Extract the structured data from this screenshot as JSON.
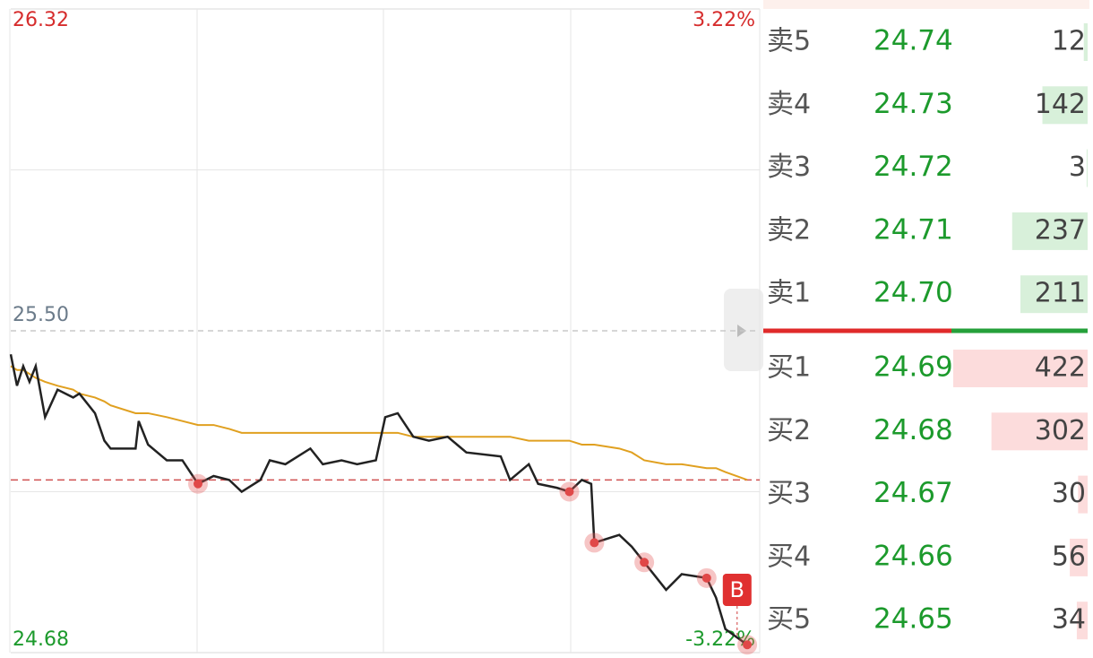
{
  "chart_data": {
    "type": "line",
    "x": [
      0,
      2,
      4,
      6,
      8,
      11,
      15,
      20,
      22,
      27,
      30,
      32,
      40,
      41,
      44,
      50,
      55,
      60,
      65,
      70,
      74,
      80,
      83,
      88,
      96,
      100,
      106,
      111,
      117,
      120,
      124,
      129,
      134,
      140,
      146,
      157,
      160,
      166,
      169,
      175,
      179,
      183,
      186,
      187,
      195,
      199,
      203,
      210,
      215,
      223,
      226,
      229,
      236
    ],
    "series": [
      {
        "name": "price",
        "color": "#222222",
        "values": [
          25.44,
          25.36,
          25.41,
          25.37,
          25.41,
          25.28,
          25.35,
          25.33,
          25.34,
          25.29,
          25.22,
          25.2,
          25.2,
          25.27,
          25.21,
          25.17,
          25.17,
          25.11,
          25.13,
          25.12,
          25.09,
          25.12,
          25.17,
          25.16,
          25.2,
          25.16,
          25.17,
          25.16,
          25.17,
          25.28,
          25.29,
          25.23,
          25.22,
          25.23,
          25.19,
          25.18,
          25.12,
          25.16,
          25.11,
          25.1,
          25.09,
          25.12,
          25.11,
          24.96,
          24.98,
          24.95,
          24.91,
          24.84,
          24.88,
          24.87,
          24.82,
          24.74,
          24.7
        ]
      },
      {
        "name": "average",
        "color": "#e0a020",
        "values": [
          25.41,
          25.4,
          25.4,
          25.39,
          25.38,
          25.37,
          25.36,
          25.35,
          25.34,
          25.33,
          25.32,
          25.31,
          25.29,
          25.29,
          25.29,
          25.28,
          25.27,
          25.26,
          25.26,
          25.25,
          25.24,
          25.24,
          25.24,
          25.24,
          25.24,
          25.24,
          25.24,
          25.24,
          25.24,
          25.24,
          25.24,
          25.23,
          25.23,
          25.23,
          25.23,
          25.23,
          25.23,
          25.22,
          25.22,
          25.22,
          25.22,
          25.21,
          25.21,
          25.21,
          25.2,
          25.19,
          25.17,
          25.16,
          25.16,
          25.15,
          25.15,
          25.14,
          25.12
        ]
      }
    ],
    "xlim": [
      0,
      240
    ],
    "ylim": [
      24.68,
      26.32
    ],
    "yticks": [
      24.68,
      {
        "value": 25.5,
        "label": "25.50"
      },
      26.32
    ],
    "y2lim": [
      -3.22,
      3.22
    ],
    "y2ticks": [
      {
        "value": -3.22,
        "label": "-3.22%"
      },
      {
        "value": 3.22,
        "label": "3.22%"
      }
    ],
    "reference_line": 25.12,
    "badge": "B",
    "grid": true
  },
  "order_book": {
    "asks": [
      {
        "label": "卖5",
        "price": "24.74",
        "volume": 12
      },
      {
        "label": "卖4",
        "price": "24.73",
        "volume": 142
      },
      {
        "label": "卖3",
        "price": "24.72",
        "volume": 3
      },
      {
        "label": "卖2",
        "price": "24.71",
        "volume": 237
      },
      {
        "label": "卖1",
        "price": "24.70",
        "volume": 211
      }
    ],
    "bids": [
      {
        "label": "买1",
        "price": "24.69",
        "volume": 422
      },
      {
        "label": "买2",
        "price": "24.68",
        "volume": 302
      },
      {
        "label": "买3",
        "price": "24.67",
        "volume": 30
      },
      {
        "label": "买4",
        "price": "24.66",
        "volume": 56
      },
      {
        "label": "买5",
        "price": "24.65",
        "volume": 34
      }
    ]
  }
}
